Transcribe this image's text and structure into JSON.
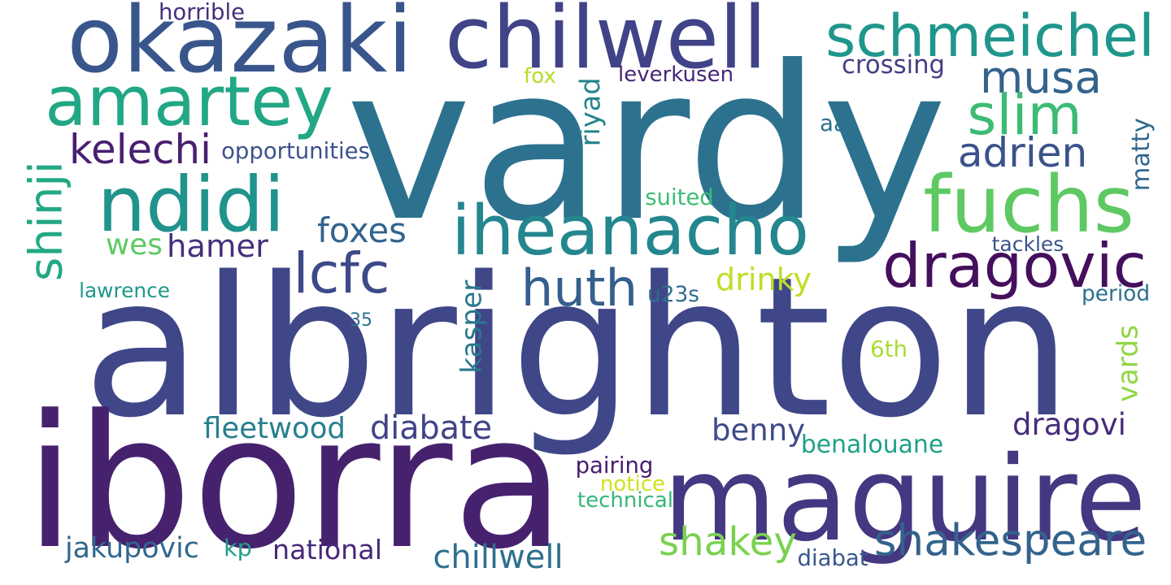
{
  "words": [
    {
      "text": "vardy",
      "color": "#2c728e"
    },
    {
      "text": "albrighton",
      "color": "#3f4788"
    },
    {
      "text": "iborra",
      "color": "#46226e"
    },
    {
      "text": "maguire",
      "color": "#453781"
    },
    {
      "text": "okazaki",
      "color": "#39568c"
    },
    {
      "text": "chilwell",
      "color": "#404387"
    },
    {
      "text": "schmeichel",
      "color": "#1f968b"
    },
    {
      "text": "amartey",
      "color": "#22a785"
    },
    {
      "text": "ndidi",
      "color": "#20938c"
    },
    {
      "text": "iheanacho",
      "color": "#24868e"
    },
    {
      "text": "fuchs",
      "color": "#5ec962"
    },
    {
      "text": "dragovic",
      "color": "#440f5d"
    },
    {
      "text": "musa",
      "color": "#33638d"
    },
    {
      "text": "slim",
      "color": "#3cbb75"
    },
    {
      "text": "shinji",
      "color": "#22a884"
    },
    {
      "text": "huth",
      "color": "#355f8d"
    },
    {
      "text": "lcfc",
      "color": "#3e4989"
    },
    {
      "text": "shakey",
      "color": "#7ad151"
    },
    {
      "text": "shakespeare",
      "color": "#33638d"
    },
    {
      "text": "kelechi",
      "color": "#481f70"
    },
    {
      "text": "adrien",
      "color": "#3b528b"
    },
    {
      "text": "hamer",
      "color": "#472f7d"
    },
    {
      "text": "foxes",
      "color": "#32648e"
    },
    {
      "text": "wes",
      "color": "#5ec962"
    },
    {
      "text": "drinky",
      "color": "#bddf26"
    },
    {
      "text": "kasper",
      "color": "#2a788e"
    },
    {
      "text": "benny",
      "color": "#3e4a89"
    },
    {
      "text": "fleetwood",
      "color": "#277f8e"
    },
    {
      "text": "diabate",
      "color": "#414487"
    },
    {
      "text": "dragovi",
      "color": "#472c7a"
    },
    {
      "text": "vards",
      "color": "#8fd744"
    },
    {
      "text": "chillwell",
      "color": "#2d708e"
    },
    {
      "text": "jakupovic",
      "color": "#31688e"
    },
    {
      "text": "national",
      "color": "#482878"
    },
    {
      "text": "kp",
      "color": "#1fa187"
    },
    {
      "text": "benalouane",
      "color": "#1fa088"
    },
    {
      "text": "matty",
      "color": "#31688e"
    },
    {
      "text": "riyad",
      "color": "#25858e"
    },
    {
      "text": "crossing",
      "color": "#433e85"
    },
    {
      "text": "leverkusen",
      "color": "#482677"
    },
    {
      "text": "fox",
      "color": "#b5de2b"
    },
    {
      "text": "aa",
      "color": "#2e6f8e"
    },
    {
      "text": "opportunities",
      "color": "#3b528b"
    },
    {
      "text": "horrible",
      "color": "#46307e"
    },
    {
      "text": "suited",
      "color": "#3dbc74"
    },
    {
      "text": "tackles",
      "color": "#3a548c"
    },
    {
      "text": "lawrence",
      "color": "#1f988b"
    },
    {
      "text": "u23s",
      "color": "#2e6e8e"
    },
    {
      "text": "period",
      "color": "#2c718e"
    },
    {
      "text": "35",
      "color": "#2c728e"
    },
    {
      "text": "6th",
      "color": "#aadc32"
    },
    {
      "text": "pairing",
      "color": "#481c6e"
    },
    {
      "text": "notice",
      "color": "#d2e21b"
    },
    {
      "text": "technical",
      "color": "#35b779"
    },
    {
      "text": "diabat",
      "color": "#38588c"
    }
  ]
}
